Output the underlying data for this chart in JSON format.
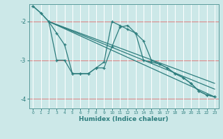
{
  "xlabel": "Humidex (Indice chaleur)",
  "bg_color": "#cce8e8",
  "grid_color": "#ffffff",
  "line_color": "#2d7d7d",
  "red_line_color": "#e08080",
  "xlim": [
    -0.5,
    23.5
  ],
  "ylim": [
    -4.25,
    -1.55
  ],
  "yticks": [
    -4,
    -3,
    -2
  ],
  "xticks": [
    0,
    1,
    2,
    3,
    4,
    5,
    6,
    7,
    8,
    9,
    10,
    11,
    12,
    13,
    14,
    15,
    16,
    17,
    18,
    19,
    20,
    21,
    22,
    23
  ],
  "series1_x": [
    0,
    1,
    2,
    3,
    4,
    5,
    6,
    7,
    8,
    9,
    10,
    11,
    12,
    13,
    14,
    15,
    16,
    17,
    18,
    19,
    20,
    21,
    22,
    23
  ],
  "series1_y": [
    -1.6,
    -1.78,
    -2.0,
    -3.0,
    -3.0,
    -3.35,
    -3.35,
    -3.35,
    -3.2,
    -3.05,
    -2.0,
    -2.1,
    -2.2,
    -2.3,
    -3.0,
    -3.05,
    -3.1,
    -3.2,
    -3.35,
    -3.45,
    -3.6,
    -3.8,
    -3.9,
    -3.95
  ],
  "series2_x": [
    0,
    1,
    2,
    3,
    4,
    5,
    6,
    7,
    8,
    9,
    10,
    11,
    12,
    13,
    14,
    15,
    16,
    17,
    18,
    19,
    20,
    21,
    22,
    23
  ],
  "series2_y": [
    -1.6,
    -1.78,
    -2.0,
    -2.3,
    -2.6,
    -3.35,
    -3.35,
    -3.35,
    -3.2,
    -3.2,
    -2.65,
    -2.15,
    -2.1,
    -2.3,
    -2.5,
    -3.0,
    -3.1,
    -3.2,
    -3.35,
    -3.45,
    -3.6,
    -3.8,
    -3.9,
    -3.95
  ],
  "trend1_x": [
    2,
    23
  ],
  "trend1_y": [
    -2.0,
    -3.95
  ],
  "trend2_x": [
    2,
    23
  ],
  "trend2_y": [
    -2.0,
    -3.75
  ],
  "trend3_x": [
    2,
    23
  ],
  "trend3_y": [
    -2.0,
    -3.6
  ]
}
